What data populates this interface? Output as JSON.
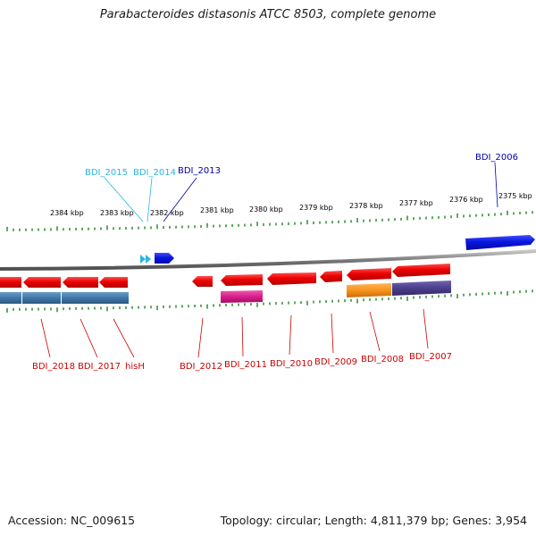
{
  "title": "Parabacteroides distasonis ATCC 8503, complete genome",
  "footer": {
    "accession": "Accession: NC_009615",
    "topology": "Topology: circular; Length: 4,811,379 bp; Genes: 3,954"
  },
  "colors": {
    "backbone": "#7a7a7a",
    "tick": "#2e8b2e",
    "red_gene": "#e60000",
    "blue_gene": "#0a17e0",
    "cyan_label": "#2bb5e0",
    "steel_block": "#3f78a8",
    "magenta_block": "#d81e8c",
    "orange_block": "#f7931e",
    "purple_block": "#4b3f8c",
    "red_label": "#cc0000",
    "dark_blue_label": "#0000aa"
  },
  "scale_labels": [
    "2384 kbp",
    "2383 kbp",
    "2382 kbp",
    "2381 kbp",
    "2380 kbp",
    "2379 kbp",
    "2378 kbp",
    "2377 kbp",
    "2376 kbp",
    "2375 kbp"
  ],
  "top_labels": [
    {
      "text": "BDI_2015",
      "color": "cyan"
    },
    {
      "text": "BDI_2014",
      "color": "cyan"
    },
    {
      "text": "BDI_2013",
      "color": "darkblue"
    },
    {
      "text": "BDI_2006",
      "color": "darkblue"
    }
  ],
  "bottom_labels": [
    "BDI_2018",
    "BDI_2017",
    "hisH",
    "BDI_2012",
    "BDI_2011",
    "BDI_2010",
    "BDI_2009",
    "BDI_2008",
    "BDI_2007"
  ]
}
